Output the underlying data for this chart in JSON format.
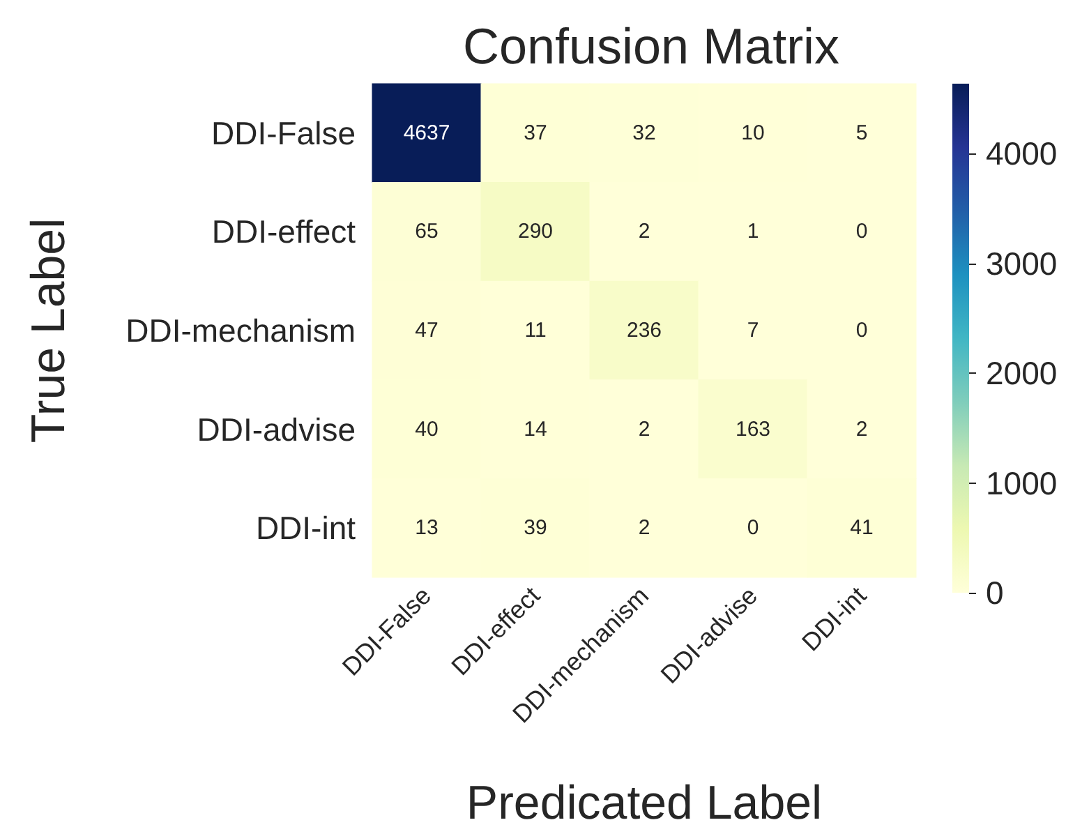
{
  "chart_data": {
    "type": "heatmap",
    "title": "Confusion Matrix",
    "xlabel": "Predicated Label",
    "ylabel": "True Label",
    "categories": [
      "DDI-False",
      "DDI-effect",
      "DDI-mechanism",
      "DDI-advise",
      "DDI-int"
    ],
    "y_categories": [
      "DDI-False",
      "DDI-effect",
      "DDI-mechanism",
      "DDI-advise",
      "DDI-int"
    ],
    "cells": [
      [
        4637,
        37,
        32,
        10,
        5
      ],
      [
        65,
        290,
        2,
        1,
        0
      ],
      [
        47,
        11,
        236,
        7,
        0
      ],
      [
        40,
        14,
        2,
        163,
        2
      ],
      [
        13,
        39,
        2,
        0,
        41
      ]
    ],
    "clim": [
      0,
      4637
    ],
    "cticks": [
      0,
      1000,
      2000,
      3000,
      4000
    ],
    "data_labels": true
  }
}
